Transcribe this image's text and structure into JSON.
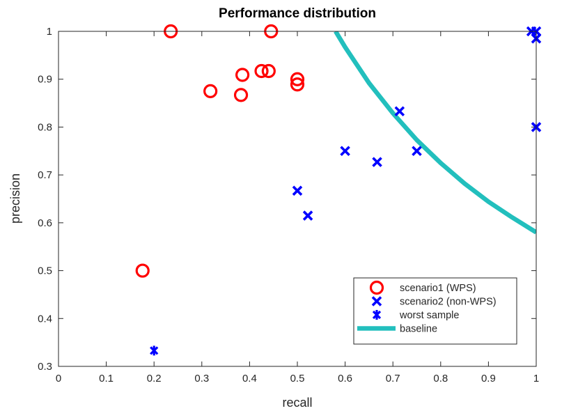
{
  "chart_data": {
    "type": "scatter",
    "title": "Performance distribution",
    "xlabel": "recall",
    "ylabel": "precision",
    "xlim": [
      0,
      1
    ],
    "ylim": [
      0.3,
      1
    ],
    "xticks": [
      "0",
      "0.1",
      "0.2",
      "0.3",
      "0.4",
      "0.5",
      "0.6",
      "0.7",
      "0.8",
      "0.9",
      "1"
    ],
    "yticks": [
      "0.3",
      "0.4",
      "0.5",
      "0.6",
      "0.7",
      "0.8",
      "0.9",
      "1"
    ],
    "grid": false,
    "legend_position": "bottom-right",
    "series": [
      {
        "name": "scenario1 (WPS)",
        "marker": "circle",
        "color": "#ff0000",
        "x": [
          0.235,
          0.445,
          0.385,
          0.425,
          0.44,
          0.5,
          0.5,
          0.318,
          0.382,
          0.176
        ],
        "y": [
          1.0,
          1.0,
          0.909,
          0.917,
          0.917,
          0.9,
          0.889,
          0.875,
          0.867,
          0.5
        ]
      },
      {
        "name": "scenario2 (non-WPS)",
        "marker": "x",
        "color": "#0000ff",
        "x": [
          0.99,
          1.0,
          1.0,
          0.714,
          1.0,
          0.6,
          0.75,
          0.667,
          0.5,
          0.522
        ],
        "y": [
          1.0,
          1.0,
          0.985,
          0.833,
          0.8,
          0.75,
          0.75,
          0.727,
          0.667,
          0.615
        ]
      },
      {
        "name": "worst sample",
        "marker": "asterisk",
        "color": "#0000ff",
        "x": [
          0.2
        ],
        "y": [
          0.333
        ]
      },
      {
        "name": "baseline",
        "marker": "line",
        "color": "#22bfbd",
        "x": [
          0.58,
          0.6,
          0.65,
          0.7,
          0.75,
          0.8,
          0.85,
          0.9,
          0.95,
          1.0
        ],
        "y": [
          1.0,
          0.967,
          0.892,
          0.829,
          0.773,
          0.725,
          0.682,
          0.644,
          0.611,
          0.58
        ]
      }
    ]
  }
}
